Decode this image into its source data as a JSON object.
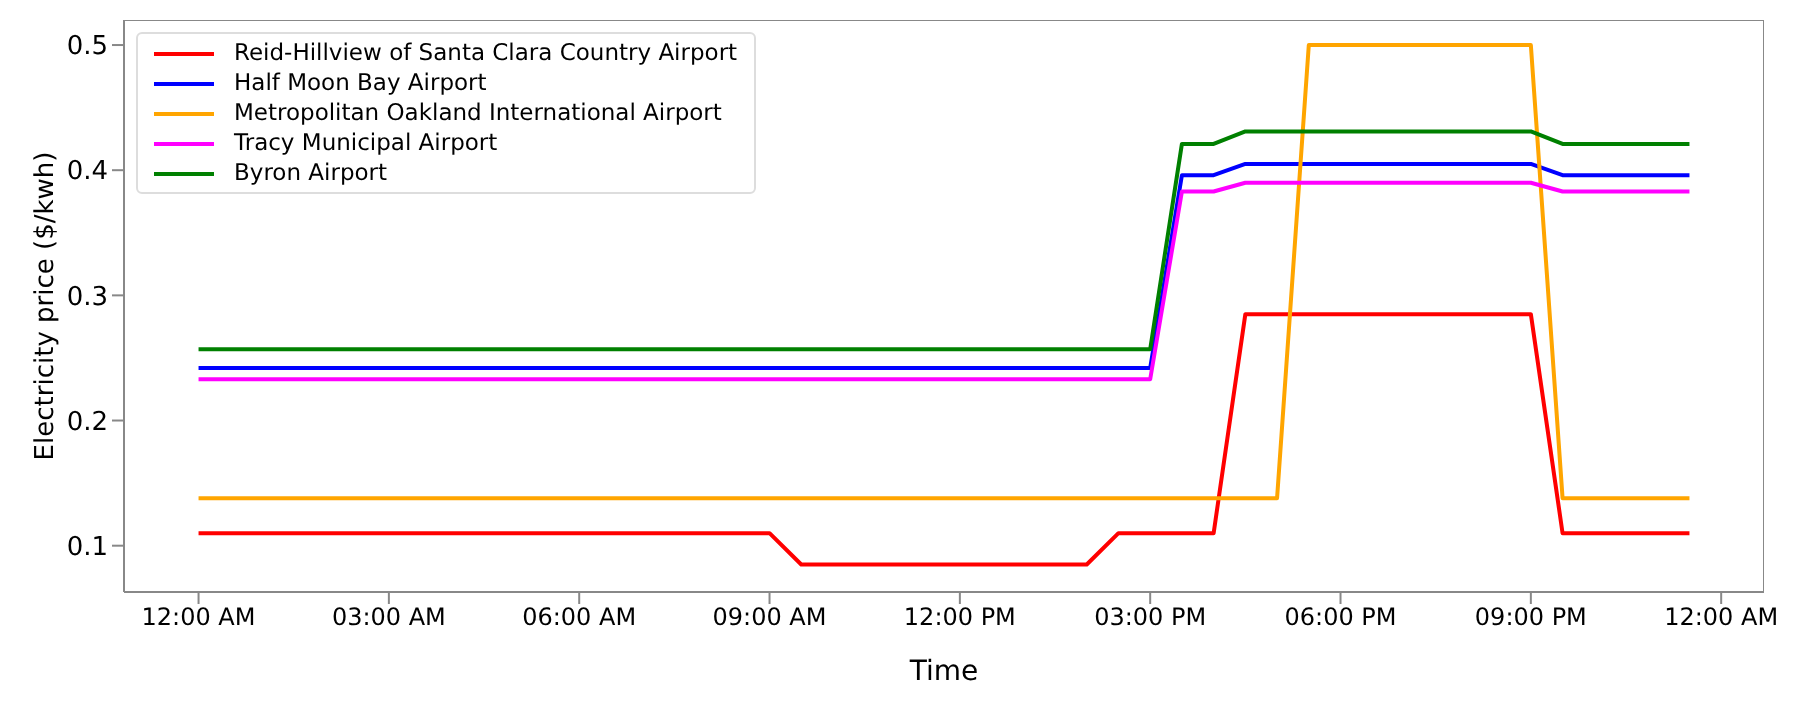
{
  "chart_data": {
    "type": "line",
    "xlabel": "Time",
    "ylabel": "Electricity price ($/kwh)",
    "x": [
      0,
      0.5,
      1,
      1.5,
      2,
      2.5,
      3,
      3.5,
      4,
      4.5,
      5,
      5.5,
      6,
      6.5,
      7,
      7.5,
      8,
      8.5,
      9,
      9.5,
      10,
      10.5,
      11,
      11.5,
      12,
      12.5,
      13,
      13.5,
      14,
      14.5,
      15,
      15.5,
      16,
      16.5,
      17,
      17.5,
      18,
      18.5,
      19,
      19.5,
      20,
      20.5,
      21,
      21.5,
      22,
      22.5,
      23,
      23.5
    ],
    "xlim": [
      -1.175,
      24.675
    ],
    "xticks": [
      {
        "value": 0,
        "label": "12:00 AM"
      },
      {
        "value": 3,
        "label": "03:00 AM"
      },
      {
        "value": 6,
        "label": "06:00 AM"
      },
      {
        "value": 9,
        "label": "09:00 AM"
      },
      {
        "value": 12,
        "label": "12:00 PM"
      },
      {
        "value": 15,
        "label": "03:00 PM"
      },
      {
        "value": 18,
        "label": "06:00 PM"
      },
      {
        "value": 21,
        "label": "09:00 PM"
      },
      {
        "value": 24,
        "label": "12:00 AM"
      }
    ],
    "ylim": [
      0.063,
      0.52
    ],
    "yticks": [
      0.1,
      0.2,
      0.3,
      0.4,
      0.5
    ],
    "grid": false,
    "legend": "top left",
    "marker": "none",
    "line_style": "solid",
    "series": [
      {
        "name": "Reid-Hillview of Santa Clara Country Airport",
        "color": "#ff0000",
        "values": [
          0.11,
          0.11,
          0.11,
          0.11,
          0.11,
          0.11,
          0.11,
          0.11,
          0.11,
          0.11,
          0.11,
          0.11,
          0.11,
          0.11,
          0.11,
          0.11,
          0.11,
          0.11,
          0.11,
          0.085,
          0.085,
          0.085,
          0.085,
          0.085,
          0.085,
          0.085,
          0.085,
          0.085,
          0.085,
          0.11,
          0.11,
          0.11,
          0.11,
          0.285,
          0.285,
          0.285,
          0.285,
          0.285,
          0.285,
          0.285,
          0.285,
          0.285,
          0.285,
          0.11,
          0.11,
          0.11,
          0.11,
          0.11
        ]
      },
      {
        "name": "Half Moon Bay Airport",
        "color": "#0000ff",
        "values": [
          0.242,
          0.242,
          0.242,
          0.242,
          0.242,
          0.242,
          0.242,
          0.242,
          0.242,
          0.242,
          0.242,
          0.242,
          0.242,
          0.242,
          0.242,
          0.242,
          0.242,
          0.242,
          0.242,
          0.242,
          0.242,
          0.242,
          0.242,
          0.242,
          0.242,
          0.242,
          0.242,
          0.242,
          0.242,
          0.242,
          0.242,
          0.396,
          0.396,
          0.405,
          0.405,
          0.405,
          0.405,
          0.405,
          0.405,
          0.405,
          0.405,
          0.405,
          0.405,
          0.396,
          0.396,
          0.396,
          0.396,
          0.396
        ]
      },
      {
        "name": "Metropolitan Oakland International Airport",
        "color": "#ffa500",
        "values": [
          0.138,
          0.138,
          0.138,
          0.138,
          0.138,
          0.138,
          0.138,
          0.138,
          0.138,
          0.138,
          0.138,
          0.138,
          0.138,
          0.138,
          0.138,
          0.138,
          0.138,
          0.138,
          0.138,
          0.138,
          0.138,
          0.138,
          0.138,
          0.138,
          0.138,
          0.138,
          0.138,
          0.138,
          0.138,
          0.138,
          0.138,
          0.138,
          0.138,
          0.138,
          0.138,
          0.5,
          0.5,
          0.5,
          0.5,
          0.5,
          0.5,
          0.5,
          0.5,
          0.138,
          0.138,
          0.138,
          0.138,
          0.138
        ]
      },
      {
        "name": "Tracy Municipal Airport",
        "color": "#ff00ff",
        "values": [
          0.233,
          0.233,
          0.233,
          0.233,
          0.233,
          0.233,
          0.233,
          0.233,
          0.233,
          0.233,
          0.233,
          0.233,
          0.233,
          0.233,
          0.233,
          0.233,
          0.233,
          0.233,
          0.233,
          0.233,
          0.233,
          0.233,
          0.233,
          0.233,
          0.233,
          0.233,
          0.233,
          0.233,
          0.233,
          0.233,
          0.233,
          0.383,
          0.383,
          0.39,
          0.39,
          0.39,
          0.39,
          0.39,
          0.39,
          0.39,
          0.39,
          0.39,
          0.39,
          0.383,
          0.383,
          0.383,
          0.383,
          0.383
        ]
      },
      {
        "name": "Byron Airport",
        "color": "#008000",
        "values": [
          0.257,
          0.257,
          0.257,
          0.257,
          0.257,
          0.257,
          0.257,
          0.257,
          0.257,
          0.257,
          0.257,
          0.257,
          0.257,
          0.257,
          0.257,
          0.257,
          0.257,
          0.257,
          0.257,
          0.257,
          0.257,
          0.257,
          0.257,
          0.257,
          0.257,
          0.257,
          0.257,
          0.257,
          0.257,
          0.257,
          0.257,
          0.421,
          0.421,
          0.431,
          0.431,
          0.431,
          0.431,
          0.431,
          0.431,
          0.431,
          0.431,
          0.431,
          0.431,
          0.421,
          0.421,
          0.421,
          0.421,
          0.421
        ]
      }
    ]
  }
}
